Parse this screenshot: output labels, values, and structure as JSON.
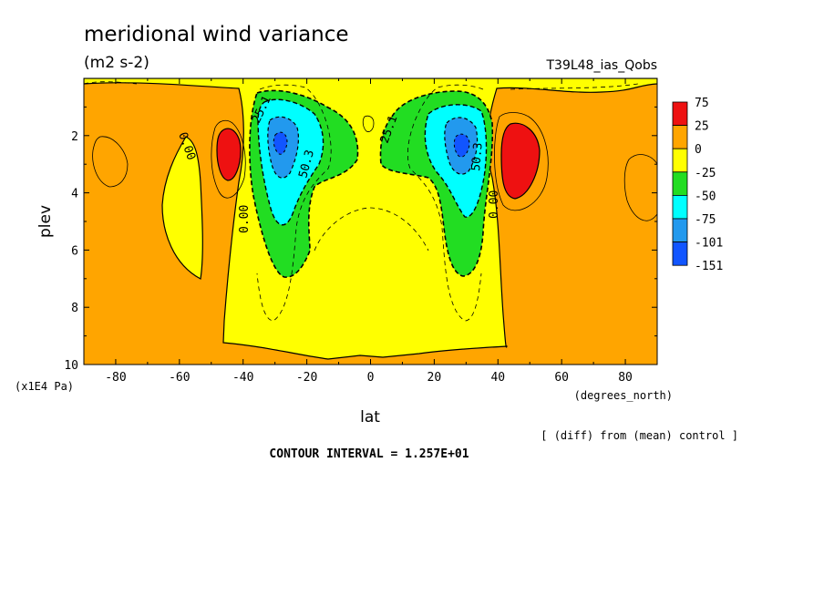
{
  "chart_data": {
    "type": "heatmap",
    "title": "meridional wind variance",
    "units": "(m2 s-2)",
    "run_label": "T39L48_ias_Qobs",
    "xlabel": "lat",
    "xunits": "(degrees_north)",
    "ylabel": "plev",
    "yunits": "(x1E4 Pa)",
    "xlim": [
      -90,
      90
    ],
    "ylim": [
      10,
      0
    ],
    "x_ticks": [
      "-80",
      "-60",
      "-40",
      "-20",
      "0",
      "20",
      "40",
      "60",
      "80"
    ],
    "y_ticks": [
      "2",
      "4",
      "6",
      "8",
      "10"
    ],
    "contour_labels": [
      "0.00",
      "25.1",
      "50.3",
      "0.00",
      "25.1",
      "50.3",
      "0.00"
    ],
    "contour_interval_text": "CONTOUR INTERVAL = 1.257E+01",
    "diff_note": "[ (diff) from (mean) control ]",
    "legend": {
      "labels": [
        "75",
        "25",
        "0",
        "-25",
        "-50",
        "-75",
        "-101",
        "-151"
      ],
      "colors": [
        "#ee1111",
        "#ffa500",
        "#ffff00",
        "#22dd22",
        "#00ffff",
        "#2299ee",
        "#1155ff"
      ]
    },
    "features": [
      {
        "name": "negative minimum SH",
        "lat": -28,
        "plev": 2.5,
        "value": -151
      },
      {
        "name": "negative minimum NH",
        "lat": 28,
        "plev": 2.5,
        "value": -151
      },
      {
        "name": "positive maximum SH",
        "lat": -44,
        "plev": 2.5,
        "value": 75
      },
      {
        "name": "positive maximum NH",
        "lat": 44,
        "plev": 2.7,
        "value": 75
      }
    ]
  }
}
